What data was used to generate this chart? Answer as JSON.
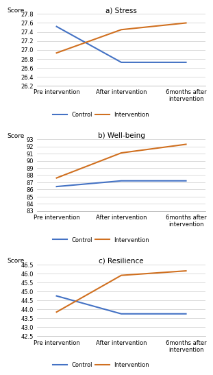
{
  "panels": [
    {
      "title": "a) Stress",
      "ylabel": "Score",
      "xlabels": [
        "Pre intervention",
        "After intervention",
        "6months after\nintervention"
      ],
      "ylim": [
        26.2,
        27.8
      ],
      "yticks": [
        26.2,
        26.4,
        26.6,
        26.8,
        27.0,
        27.2,
        27.4,
        27.6,
        27.8
      ],
      "control": [
        27.52,
        26.72,
        26.72
      ],
      "intervention": [
        26.93,
        27.45,
        27.6
      ]
    },
    {
      "title": "b) Well-being",
      "ylabel": "Score",
      "xlabels": [
        "Pre intervention",
        "After intervention",
        "6months after\nintervention"
      ],
      "ylim": [
        83,
        93
      ],
      "yticks": [
        83,
        84,
        85,
        86,
        87,
        88,
        89,
        90,
        91,
        92,
        93
      ],
      "control": [
        86.4,
        87.2,
        87.2
      ],
      "intervention": [
        87.6,
        91.1,
        92.3
      ]
    },
    {
      "title": "c) Resilience",
      "ylabel": "Score",
      "xlabels": [
        "Pre intervention",
        "After intervention",
        "6months after\nintervention"
      ],
      "ylim": [
        42.5,
        46.5
      ],
      "yticks": [
        42.5,
        43.0,
        43.5,
        44.0,
        44.5,
        45.0,
        45.5,
        46.0,
        46.5
      ],
      "control": [
        44.75,
        43.75,
        43.75
      ],
      "intervention": [
        43.85,
        45.9,
        46.15
      ]
    }
  ],
  "control_color": "#4472c4",
  "intervention_color": "#d07020",
  "legend_labels": [
    "Control",
    "Intervention"
  ],
  "background_color": "#ffffff",
  "line_width": 1.5
}
